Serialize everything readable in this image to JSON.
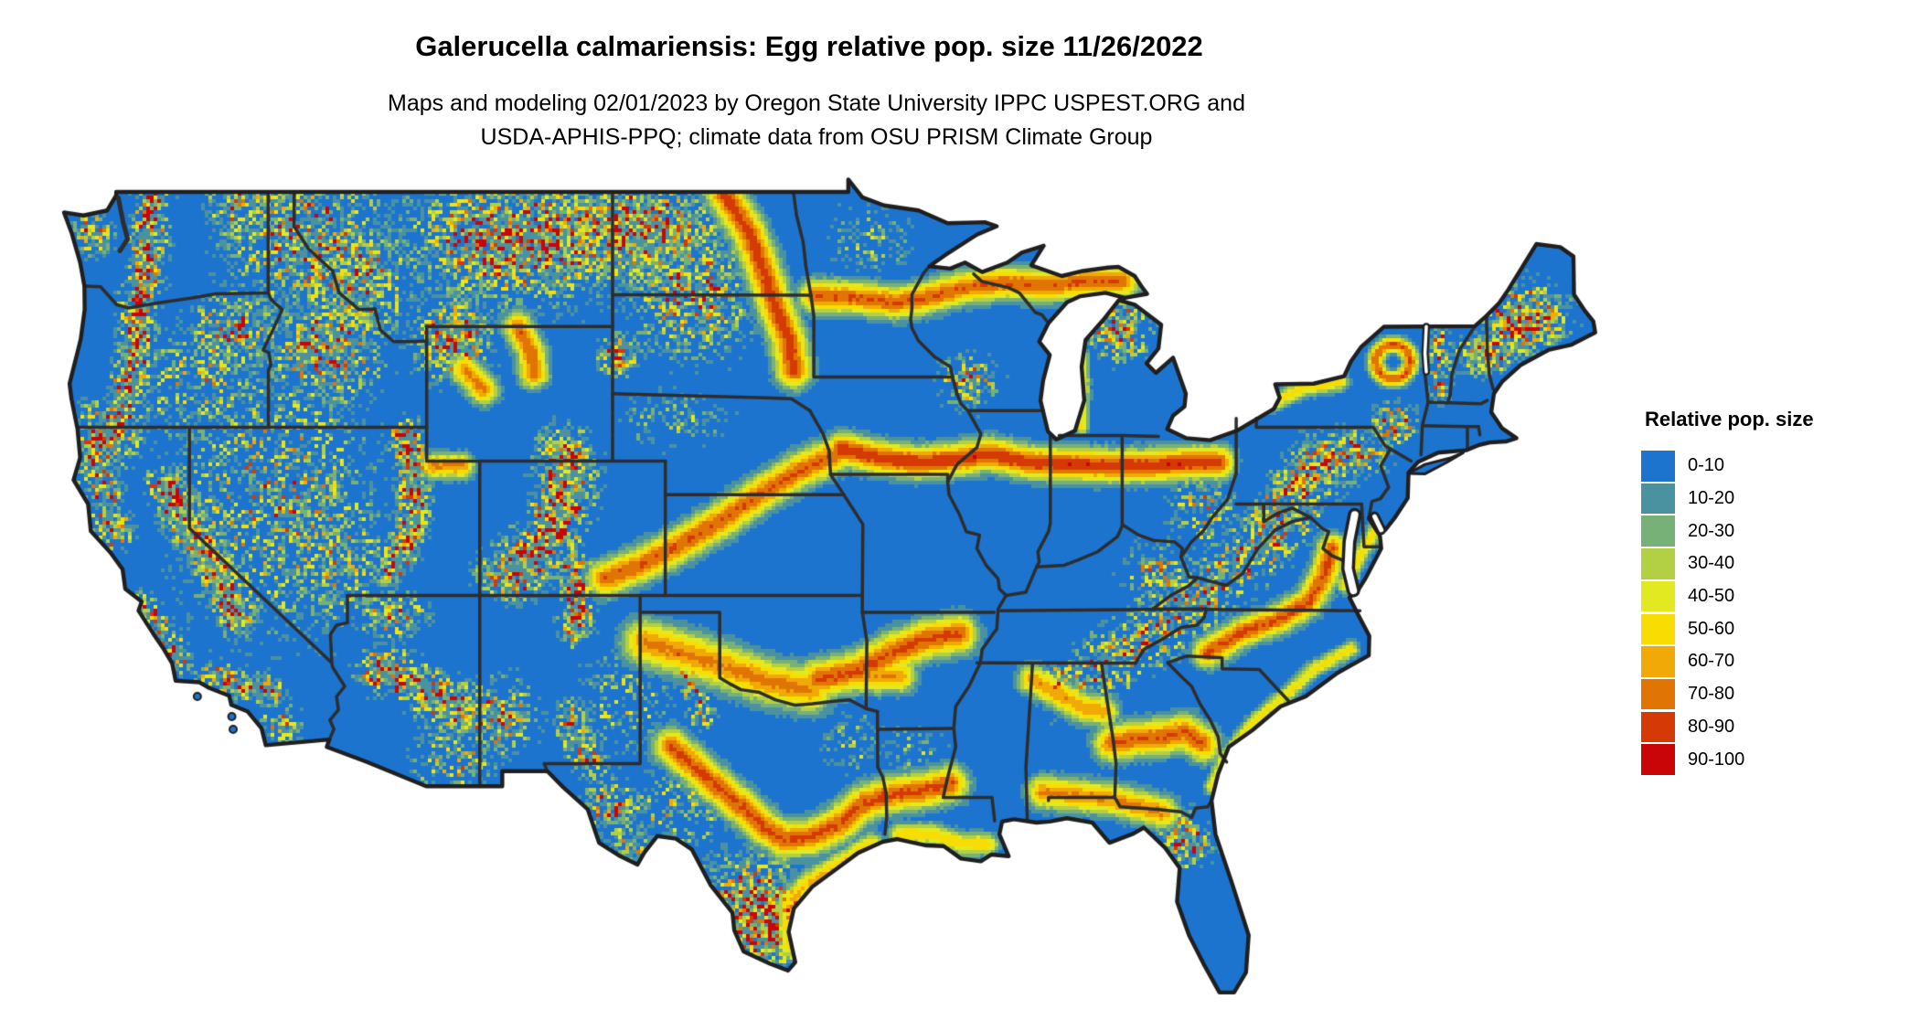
{
  "title": "Galerucella calmariensis: Egg relative pop. size 11/26/2022",
  "subtitle": {
    "line1": "Maps and modeling 02/01/2023 by Oregon State University IPPC USPEST.ORG and",
    "line2": "USDA-APHIS-PPQ; climate data from OSU PRISM Climate Group"
  },
  "legend": {
    "title": "Relative pop. size",
    "items": [
      {
        "label": "0-10",
        "color": "#1c74cf"
      },
      {
        "label": "10-20",
        "color": "#4b92a1"
      },
      {
        "label": "20-30",
        "color": "#78b177"
      },
      {
        "label": "30-40",
        "color": "#b3d044"
      },
      {
        "label": "40-50",
        "color": "#e3e921"
      },
      {
        "label": "50-60",
        "color": "#f8dd02"
      },
      {
        "label": "60-70",
        "color": "#f0a906"
      },
      {
        "label": "70-80",
        "color": "#e17503"
      },
      {
        "label": "80-90",
        "color": "#d53a04"
      },
      {
        "label": "90-100",
        "color": "#c90508"
      }
    ]
  },
  "map": {
    "ocean_color": "#ffffff",
    "state_border_color": "#2d2d2d",
    "outline_color": "#1f1f1f",
    "base_bin_label": "0-10"
  }
}
